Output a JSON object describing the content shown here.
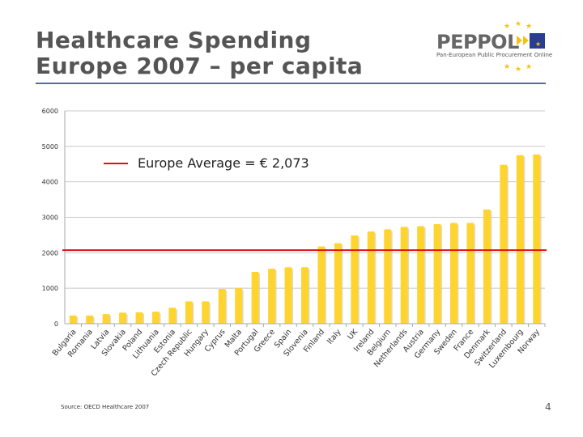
{
  "slide": {
    "title_line1": "Healthcare Spending",
    "title_line2": "Europe 2007 – per capita",
    "source": "Source: OECD Healthcare 2007",
    "page_number": "4",
    "logo": {
      "name": "PEPPOL",
      "subtitle": "Pan-European Public Procurement Online"
    }
  },
  "colors": {
    "bar": "#ffd42e",
    "average_line": "#dd1111",
    "title": "#555555",
    "rule": "#5a6aa8"
  },
  "chart_data": {
    "type": "bar",
    "categories": [
      "Bulgaria",
      "Romania",
      "Latvia",
      "Slovakia",
      "Poland",
      "Lithuania",
      "Estonia",
      "Czech Republic",
      "Hungary",
      "Cyprus",
      "Malta",
      "Portugal",
      "Greece",
      "Spain",
      "Slovenia",
      "Finland",
      "Italy",
      "UK",
      "Ireland",
      "Belgium",
      "Netherlands",
      "Austria",
      "Germany",
      "Sweden",
      "France",
      "Denmark",
      "Switzerland",
      "Luxembourg",
      "Norway"
    ],
    "values": [
      230,
      230,
      270,
      310,
      320,
      340,
      450,
      630,
      630,
      980,
      1000,
      1460,
      1550,
      1590,
      1590,
      2180,
      2270,
      2490,
      2600,
      2660,
      2730,
      2750,
      2810,
      2840,
      2840,
      3220,
      4480,
      4750,
      4770
    ],
    "ylim": [
      0,
      6000
    ],
    "yticks": [
      "0",
      "1000",
      "2000",
      "3000",
      "4000",
      "5000",
      "6000"
    ],
    "grid": true,
    "reference_line": {
      "value": 2073,
      "label": "Europe Average = € 2,073"
    },
    "legend": "top-left"
  }
}
